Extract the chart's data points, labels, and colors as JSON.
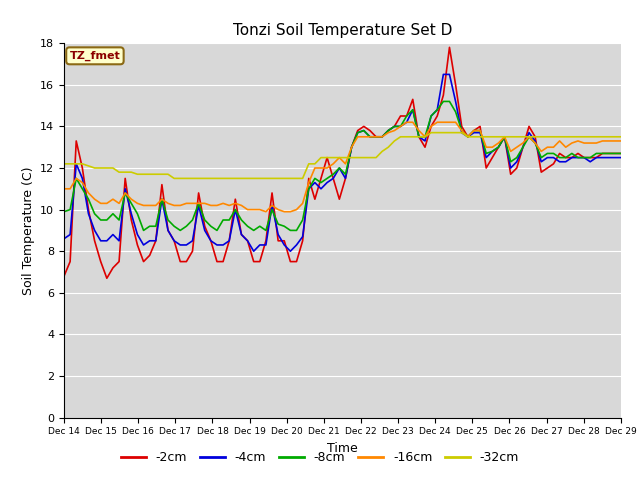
{
  "title": "Tonzi Soil Temperature Set D",
  "xlabel": "Time",
  "ylabel": "Soil Temperature (C)",
  "ylim": [
    0,
    18
  ],
  "annotation_text": "TZ_fmet",
  "annotation_color": "#8B0000",
  "annotation_bg": "#FFFFCC",
  "annotation_edge": "#8B6914",
  "grid_color": "#FFFFFF",
  "bg_color": "#D8D8D8",
  "series": {
    "-2cm": {
      "color": "#DD0000",
      "lw": 1.2
    },
    "-4cm": {
      "color": "#0000DD",
      "lw": 1.2
    },
    "-8cm": {
      "color": "#00AA00",
      "lw": 1.2
    },
    "-16cm": {
      "color": "#FF8800",
      "lw": 1.2
    },
    "-32cm": {
      "color": "#CCCC00",
      "lw": 1.2
    }
  },
  "x_labels": [
    "Dec 14",
    "Dec 15",
    "Dec 16",
    "Dec 17",
    "Dec 18",
    "Dec 19",
    "Dec 20",
    "Dec 21",
    "Dec 22",
    "Dec 23",
    "Dec 24",
    "Dec 25",
    "Dec 26",
    "Dec 27",
    "Dec 28",
    "Dec 29"
  ],
  "data_m2cm": [
    6.8,
    7.5,
    13.3,
    12.0,
    10.0,
    8.5,
    7.5,
    6.7,
    7.2,
    7.5,
    11.5,
    9.5,
    8.3,
    7.5,
    7.8,
    8.5,
    11.2,
    9.0,
    8.5,
    7.5,
    7.5,
    8.0,
    10.8,
    9.2,
    8.5,
    7.5,
    7.5,
    8.5,
    10.5,
    8.8,
    8.5,
    7.5,
    7.5,
    8.5,
    10.8,
    8.5,
    8.5,
    7.5,
    7.5,
    8.5,
    11.5,
    10.5,
    11.5,
    12.5,
    11.5,
    10.5,
    11.5,
    13.0,
    13.8,
    14.0,
    13.8,
    13.5,
    13.5,
    13.8,
    14.0,
    14.5,
    14.5,
    15.3,
    13.5,
    13.0,
    14.0,
    14.5,
    15.5,
    17.8,
    16.0,
    14.0,
    13.5,
    13.8,
    14.0,
    12.0,
    12.5,
    13.0,
    13.5,
    11.7,
    12.0,
    13.0,
    14.0,
    13.5,
    11.8,
    12.0,
    12.2,
    12.7,
    12.5,
    12.5,
    12.7,
    12.5,
    12.5,
    12.5,
    12.7,
    12.7,
    12.7,
    12.7
  ],
  "data_m4cm": [
    8.6,
    8.8,
    12.2,
    11.5,
    9.8,
    9.0,
    8.5,
    8.5,
    8.8,
    8.5,
    11.0,
    9.8,
    8.8,
    8.3,
    8.5,
    8.5,
    10.5,
    9.0,
    8.5,
    8.3,
    8.3,
    8.5,
    10.2,
    9.0,
    8.5,
    8.3,
    8.3,
    8.5,
    10.0,
    8.8,
    8.5,
    8.0,
    8.3,
    8.3,
    10.2,
    8.8,
    8.3,
    8.0,
    8.3,
    8.7,
    11.0,
    11.3,
    11.0,
    11.3,
    11.5,
    12.0,
    11.5,
    13.0,
    13.7,
    13.8,
    13.5,
    13.5,
    13.5,
    13.8,
    14.0,
    14.0,
    14.2,
    14.8,
    13.5,
    13.3,
    14.5,
    14.8,
    16.5,
    16.5,
    15.2,
    13.7,
    13.5,
    13.7,
    13.7,
    12.5,
    12.8,
    13.0,
    13.5,
    12.0,
    12.3,
    13.0,
    13.7,
    13.3,
    12.3,
    12.5,
    12.5,
    12.3,
    12.3,
    12.5,
    12.5,
    12.5,
    12.3,
    12.5,
    12.5,
    12.5,
    12.5,
    12.5
  ],
  "data_m8cm": [
    9.9,
    10.0,
    11.5,
    11.0,
    10.5,
    9.8,
    9.5,
    9.5,
    9.8,
    9.5,
    10.8,
    10.3,
    9.8,
    9.0,
    9.2,
    9.2,
    10.5,
    9.5,
    9.2,
    9.0,
    9.2,
    9.5,
    10.3,
    9.5,
    9.2,
    9.0,
    9.5,
    9.5,
    10.0,
    9.5,
    9.2,
    9.0,
    9.2,
    9.0,
    10.0,
    9.3,
    9.2,
    9.0,
    9.0,
    9.5,
    11.0,
    11.5,
    11.3,
    11.5,
    11.7,
    12.0,
    11.7,
    13.0,
    13.7,
    13.8,
    13.5,
    13.5,
    13.5,
    13.8,
    14.0,
    14.0,
    14.5,
    14.8,
    13.5,
    13.5,
    14.5,
    14.8,
    15.2,
    15.2,
    14.7,
    13.8,
    13.5,
    13.8,
    13.8,
    12.7,
    12.8,
    13.0,
    13.5,
    12.3,
    12.5,
    13.0,
    13.5,
    13.2,
    12.5,
    12.7,
    12.7,
    12.5,
    12.5,
    12.7,
    12.5,
    12.5,
    12.5,
    12.7,
    12.7,
    12.7,
    12.7,
    12.7
  ],
  "data_m16cm": [
    11.0,
    11.0,
    11.5,
    11.3,
    10.8,
    10.5,
    10.3,
    10.3,
    10.5,
    10.3,
    10.8,
    10.5,
    10.3,
    10.2,
    10.2,
    10.2,
    10.5,
    10.3,
    10.2,
    10.2,
    10.3,
    10.3,
    10.3,
    10.3,
    10.2,
    10.2,
    10.3,
    10.2,
    10.3,
    10.2,
    10.0,
    10.0,
    10.0,
    9.9,
    10.2,
    10.0,
    9.9,
    9.9,
    10.0,
    10.3,
    11.3,
    12.0,
    12.0,
    12.0,
    12.2,
    12.5,
    12.2,
    13.0,
    13.5,
    13.5,
    13.5,
    13.5,
    13.5,
    13.7,
    13.8,
    14.0,
    14.2,
    14.2,
    13.8,
    13.5,
    14.0,
    14.2,
    14.2,
    14.2,
    14.2,
    13.8,
    13.5,
    13.8,
    13.8,
    13.0,
    13.0,
    13.2,
    13.5,
    12.8,
    13.0,
    13.2,
    13.5,
    13.2,
    12.8,
    13.0,
    13.0,
    13.3,
    13.0,
    13.2,
    13.3,
    13.2,
    13.2,
    13.2,
    13.3,
    13.3,
    13.3,
    13.3
  ],
  "data_m32cm": [
    12.2,
    12.2,
    12.2,
    12.2,
    12.1,
    12.0,
    12.0,
    12.0,
    12.0,
    11.8,
    11.8,
    11.8,
    11.7,
    11.7,
    11.7,
    11.7,
    11.7,
    11.7,
    11.5,
    11.5,
    11.5,
    11.5,
    11.5,
    11.5,
    11.5,
    11.5,
    11.5,
    11.5,
    11.5,
    11.5,
    11.5,
    11.5,
    11.5,
    11.5,
    11.5,
    11.5,
    11.5,
    11.5,
    11.5,
    11.5,
    12.2,
    12.2,
    12.5,
    12.5,
    12.5,
    12.5,
    12.5,
    12.5,
    12.5,
    12.5,
    12.5,
    12.5,
    12.8,
    13.0,
    13.3,
    13.5,
    13.5,
    13.5,
    13.5,
    13.5,
    13.7,
    13.7,
    13.7,
    13.7,
    13.7,
    13.7,
    13.5,
    13.5,
    13.5,
    13.5,
    13.5,
    13.5,
    13.5,
    13.5,
    13.5,
    13.5,
    13.5,
    13.5,
    13.5,
    13.5,
    13.5,
    13.5,
    13.5,
    13.5,
    13.5,
    13.5,
    13.5,
    13.5,
    13.5,
    13.5,
    13.5,
    13.5
  ]
}
